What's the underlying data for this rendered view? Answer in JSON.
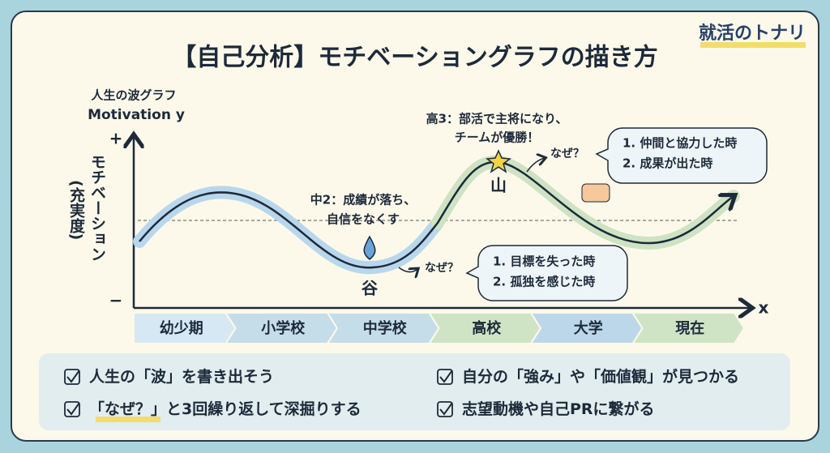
{
  "brand": "就活のトナリ",
  "title": "【自己分析】モチベーショングラフの描き方",
  "axis": {
    "caption": "人生の波グラフ",
    "y_label": "Motivation y",
    "plus": "+",
    "minus": "−",
    "y_title": "モチベーション",
    "y_subtitle": "(充実度)",
    "x_label": "x"
  },
  "peak": {
    "lines": [
      "高3：部活で主将になり、",
      "チームが優勝！"
    ],
    "mark": "山",
    "why": "なぜ？",
    "reasons": [
      "1. 仲間と協力した時",
      "2. 成果が出た時"
    ]
  },
  "valley": {
    "lines": [
      "中2：成績が落ち、",
      "自信をなくす"
    ],
    "mark": "谷",
    "why": "なぜ？",
    "reasons": [
      "1. 目標を失った時",
      "2. 孤独を感じた時"
    ]
  },
  "stages": [
    "幼少期",
    "小学校",
    "中学校",
    "高校",
    "大学",
    "現在"
  ],
  "checklist": [
    [
      "人生の「波」を書き出そう"
    ],
    [
      "「なぜ？」",
      "と3回繰り返して深掘りする"
    ],
    [
      "自分の「強み」や「価値観」が見つかる"
    ],
    [
      "志望動機や自己PRに繋がる"
    ]
  ]
}
